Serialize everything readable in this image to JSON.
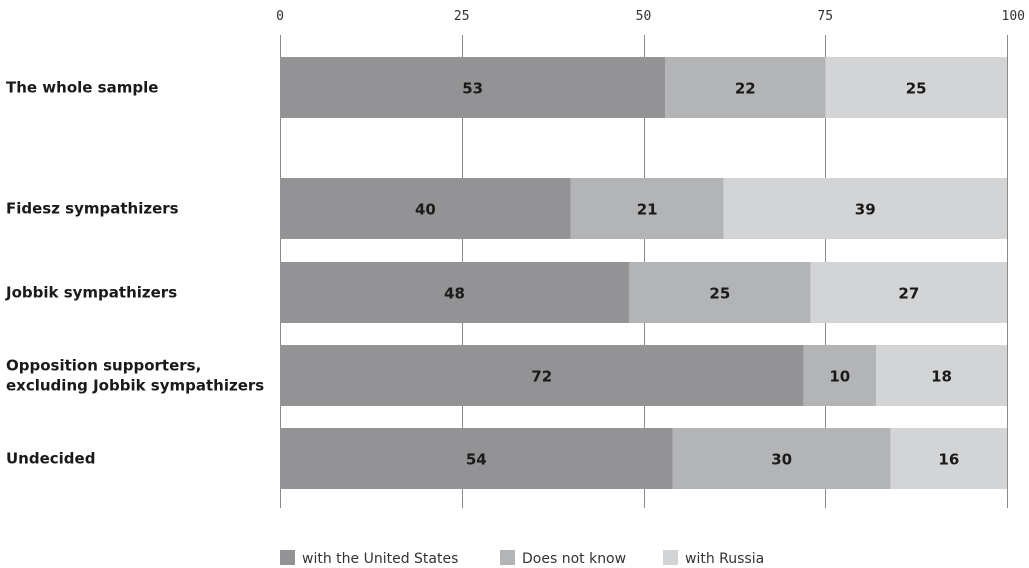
{
  "chart_data": {
    "type": "bar",
    "orientation": "horizontal",
    "stacked": true,
    "categories": [
      "The whole sample",
      "Fidesz sympathizers",
      "Jobbik sympathizers",
      "Opposition supporters,\nexcluding Jobbik sympathizers",
      "Undecided"
    ],
    "series": [
      {
        "name": "with the United States",
        "color": "#939395",
        "values": [
          53,
          40,
          48,
          72,
          54
        ]
      },
      {
        "name": "Does not know",
        "color": "#b3b4b6",
        "values": [
          22,
          21,
          25,
          10,
          30
        ]
      },
      {
        "name": "with Russia",
        "color": "#d3d4d6",
        "values": [
          25,
          39,
          27,
          18,
          16
        ]
      }
    ],
    "xlim": [
      0,
      100
    ],
    "xticks": [
      0,
      25,
      50,
      75,
      100
    ],
    "grid": true,
    "legend_position": "bottom-center"
  }
}
